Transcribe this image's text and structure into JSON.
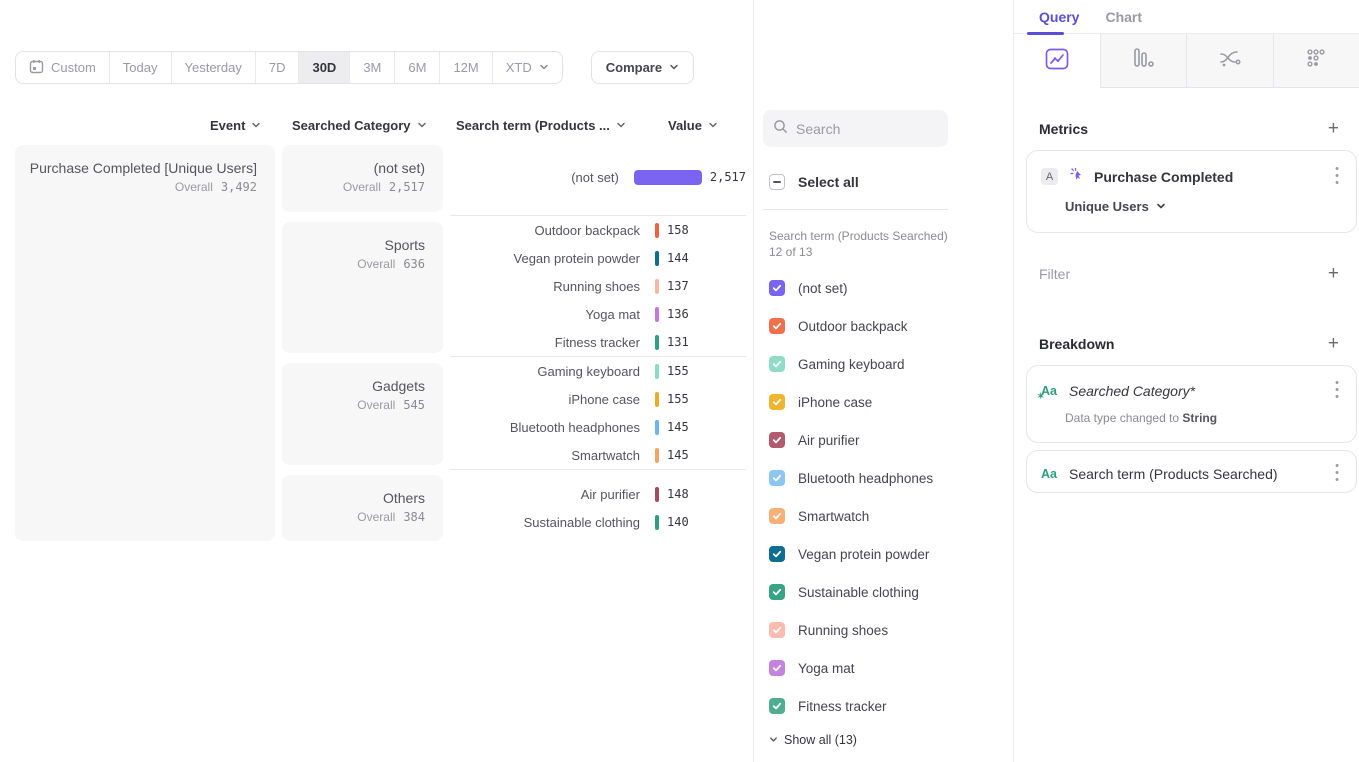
{
  "toolbar": {
    "date_ranges": [
      "Custom",
      "Today",
      "Yesterday",
      "7D",
      "30D",
      "3M",
      "6M",
      "12M",
      "XTD"
    ],
    "selected_range": "30D",
    "compare_label": "Compare",
    "chart_type": "Bar"
  },
  "table": {
    "max_value": 2517,
    "headers": {
      "event": "Event",
      "category": "Searched Category",
      "term": "Search term (Products ...",
      "value": "Value"
    },
    "event": {
      "name": "Purchase Completed [Unique Users]",
      "overall_label": "Overall",
      "overall_value": "3,492"
    },
    "categories": [
      {
        "name": "(not set)",
        "overall_label": "Overall",
        "overall_value": "2,517"
      },
      {
        "name": "Sports",
        "overall_label": "Overall",
        "overall_value": "636"
      },
      {
        "name": "Gadgets",
        "overall_label": "Overall",
        "overall_value": "545"
      },
      {
        "name": "Others",
        "overall_label": "Overall",
        "overall_value": "384"
      }
    ],
    "rows": [
      {
        "term": "(not set)",
        "value": 2517,
        "value_display": "2,517",
        "color": "#7b64f2"
      },
      {
        "term": "Outdoor backpack",
        "value": 158,
        "value_display": "158",
        "color": "#f2613d"
      },
      {
        "term": "Vegan protein powder",
        "value": 144,
        "value_display": "144",
        "color": "#0f6e8e"
      },
      {
        "term": "Running shoes",
        "value": 137,
        "value_display": "137",
        "color": "#f8b7a4"
      },
      {
        "term": "Yoga mat",
        "value": 136,
        "value_display": "136",
        "color": "#c776dc"
      },
      {
        "term": "Fitness tracker",
        "value": 131,
        "value_display": "131",
        "color": "#30a07e"
      },
      {
        "term": "Gaming keyboard",
        "value": 155,
        "value_display": "155",
        "color": "#8adcc4"
      },
      {
        "term": "iPhone case",
        "value": 155,
        "value_display": "155",
        "color": "#efa928"
      },
      {
        "term": "Bluetooth headphones",
        "value": 145,
        "value_display": "145",
        "color": "#6cb5f0"
      },
      {
        "term": "Smartwatch",
        "value": 145,
        "value_display": "145",
        "color": "#f5a263"
      },
      {
        "term": "Air purifier",
        "value": 148,
        "value_display": "148",
        "color": "#a84a5e"
      },
      {
        "term": "Sustainable clothing",
        "value": 140,
        "value_display": "140",
        "color": "#2d9f7c"
      }
    ]
  },
  "filter_panel": {
    "search_placeholder": "Search",
    "select_all_label": "Select all",
    "group_label": "Search term (Products Searched) 12 of 13",
    "items": [
      {
        "label": "(not set)",
        "color": "#7b64f2"
      },
      {
        "label": "Outdoor backpack",
        "color": "#f0704c"
      },
      {
        "label": "Gaming keyboard",
        "color": "#90dcc6"
      },
      {
        "label": "iPhone case",
        "color": "#f0b42e"
      },
      {
        "label": "Air purifier",
        "color": "#b05c6e"
      },
      {
        "label": "Bluetooth headphones",
        "color": "#8cc6f2"
      },
      {
        "label": "Smartwatch",
        "color": "#f9b077"
      },
      {
        "label": "Vegan protein powder",
        "color": "#0f6e8e"
      },
      {
        "label": "Sustainable clothing",
        "color": "#38a385"
      },
      {
        "label": "Running shoes",
        "color": "#f9bcae"
      },
      {
        "label": "Yoga mat",
        "color": "#c583e0"
      },
      {
        "label": "Fitness tracker",
        "color": "#4fae92"
      }
    ],
    "show_all_label": "Show all (13)"
  },
  "query_panel": {
    "tabs": {
      "query": "Query",
      "chart": "Chart"
    },
    "metrics": {
      "title": "Metrics",
      "card": {
        "badge": "A",
        "event_name": "Purchase Completed",
        "measurement": "Unique Users"
      }
    },
    "filter": {
      "title": "Filter"
    },
    "breakdown": {
      "title": "Breakdown",
      "cards": [
        {
          "icon": "Aa",
          "name": "Searched Category*",
          "note_prefix": "Data type changed to ",
          "note_value": "String"
        },
        {
          "icon": "Aa",
          "name": "Search term (Products Searched)"
        }
      ]
    }
  },
  "colors": {
    "accent": "#5a4fd6",
    "bar_purple": "#7b64f2"
  }
}
